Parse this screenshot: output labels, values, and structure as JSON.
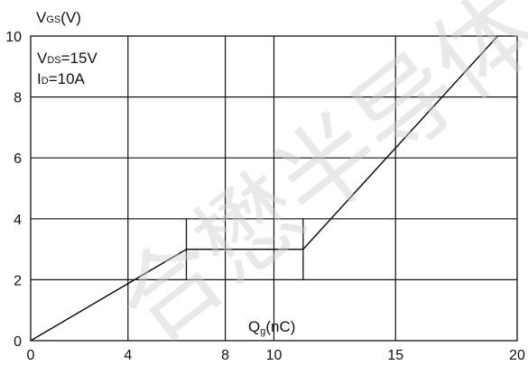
{
  "chart_data": {
    "type": "line",
    "title": "",
    "ylabel": {
      "main": "V",
      "sub": "GS",
      "unit": "(V)"
    },
    "xlabel": {
      "main": "Q",
      "sub": "g",
      "unit": "(nC)"
    },
    "xlim": [
      0,
      20
    ],
    "ylim": [
      0,
      10
    ],
    "x_ticks": [
      0,
      4,
      8,
      10,
      15,
      20
    ],
    "y_ticks": [
      0,
      2,
      4,
      6,
      8,
      10
    ],
    "grid": true,
    "conditions": [
      {
        "main": "V",
        "sub": "DS",
        "value": "=15V"
      },
      {
        "main": "I",
        "sub": "D",
        "value": "=10A"
      }
    ],
    "series": [
      {
        "x": [
          0,
          6.4,
          11.2,
          19.2
        ],
        "y": [
          0,
          3.0,
          3.0,
          10.0
        ]
      }
    ],
    "markers": [
      {
        "x": 6.4,
        "y_from": 2.0,
        "y_to": 4.0
      },
      {
        "x": 11.2,
        "y_from": 2.0,
        "y_to": 4.0
      }
    ],
    "watermark": "合懋半导体（",
    "colors": {
      "line": "#111111",
      "grid": "#111111",
      "watermark": "#cfcfcf"
    }
  }
}
